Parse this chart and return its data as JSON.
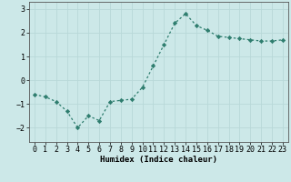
{
  "x": [
    0,
    1,
    2,
    3,
    4,
    5,
    6,
    7,
    8,
    9,
    10,
    11,
    12,
    13,
    14,
    15,
    16,
    17,
    18,
    19,
    20,
    21,
    22,
    23
  ],
  "y": [
    -0.6,
    -0.7,
    -0.9,
    -1.3,
    -2.0,
    -1.5,
    -1.7,
    -0.9,
    -0.85,
    -0.8,
    -0.3,
    0.6,
    1.5,
    2.4,
    2.8,
    2.3,
    2.1,
    1.85,
    1.8,
    1.75,
    1.7,
    1.65,
    1.65,
    1.7
  ],
  "line_color": "#2e7d6e",
  "marker": "D",
  "marker_size": 2.2,
  "bg_color": "#cce8e8",
  "grid_color": "#b8d8d8",
  "xlabel": "Humidex (Indice chaleur)",
  "xlim": [
    -0.5,
    23.5
  ],
  "ylim": [
    -2.6,
    3.3
  ],
  "yticks": [
    -2,
    -1,
    0,
    1,
    2,
    3
  ],
  "xtick_labels": [
    "0",
    "1",
    "2",
    "3",
    "4",
    "5",
    "6",
    "7",
    "8",
    "9",
    "10",
    "11",
    "12",
    "13",
    "14",
    "15",
    "16",
    "17",
    "18",
    "19",
    "20",
    "21",
    "22",
    "23"
  ]
}
